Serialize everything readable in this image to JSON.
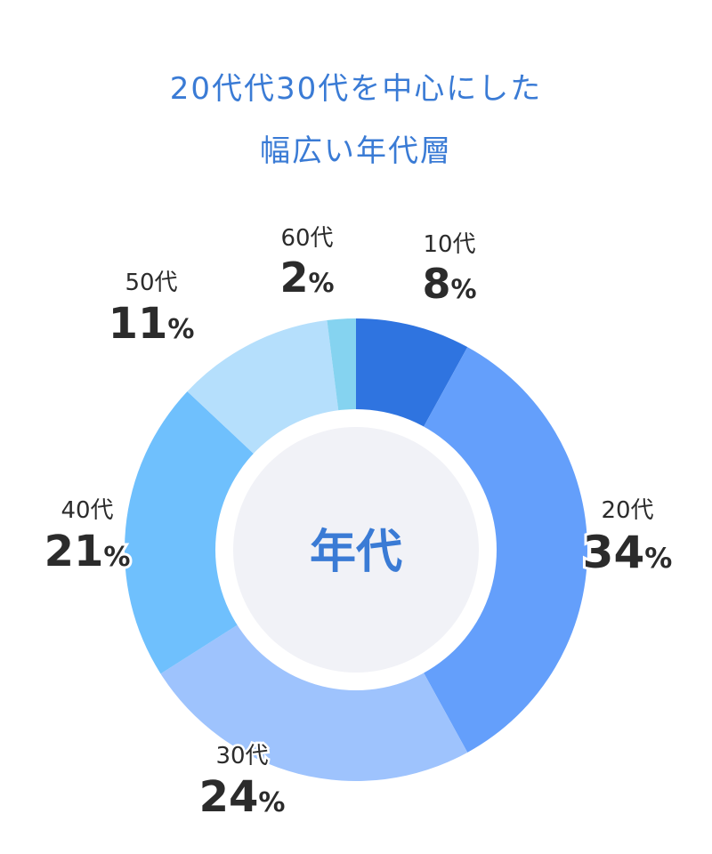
{
  "title": {
    "line1": "20代代30代を中心にした",
    "line2": "幅広い年代層"
  },
  "chart_data": {
    "type": "pie",
    "variant": "donut",
    "center_label": "年代",
    "unit": "%",
    "categories": [
      "10代",
      "20代",
      "30代",
      "40代",
      "50代",
      "60代"
    ],
    "values": [
      8,
      34,
      24,
      21,
      11,
      2
    ],
    "colors": [
      "#2f74e0",
      "#649ffb",
      "#9ec3fd",
      "#6fc0fd",
      "#b5dffc",
      "#85d3f0"
    ],
    "title": "20代代30代を中心にした 幅広い年代層"
  }
}
